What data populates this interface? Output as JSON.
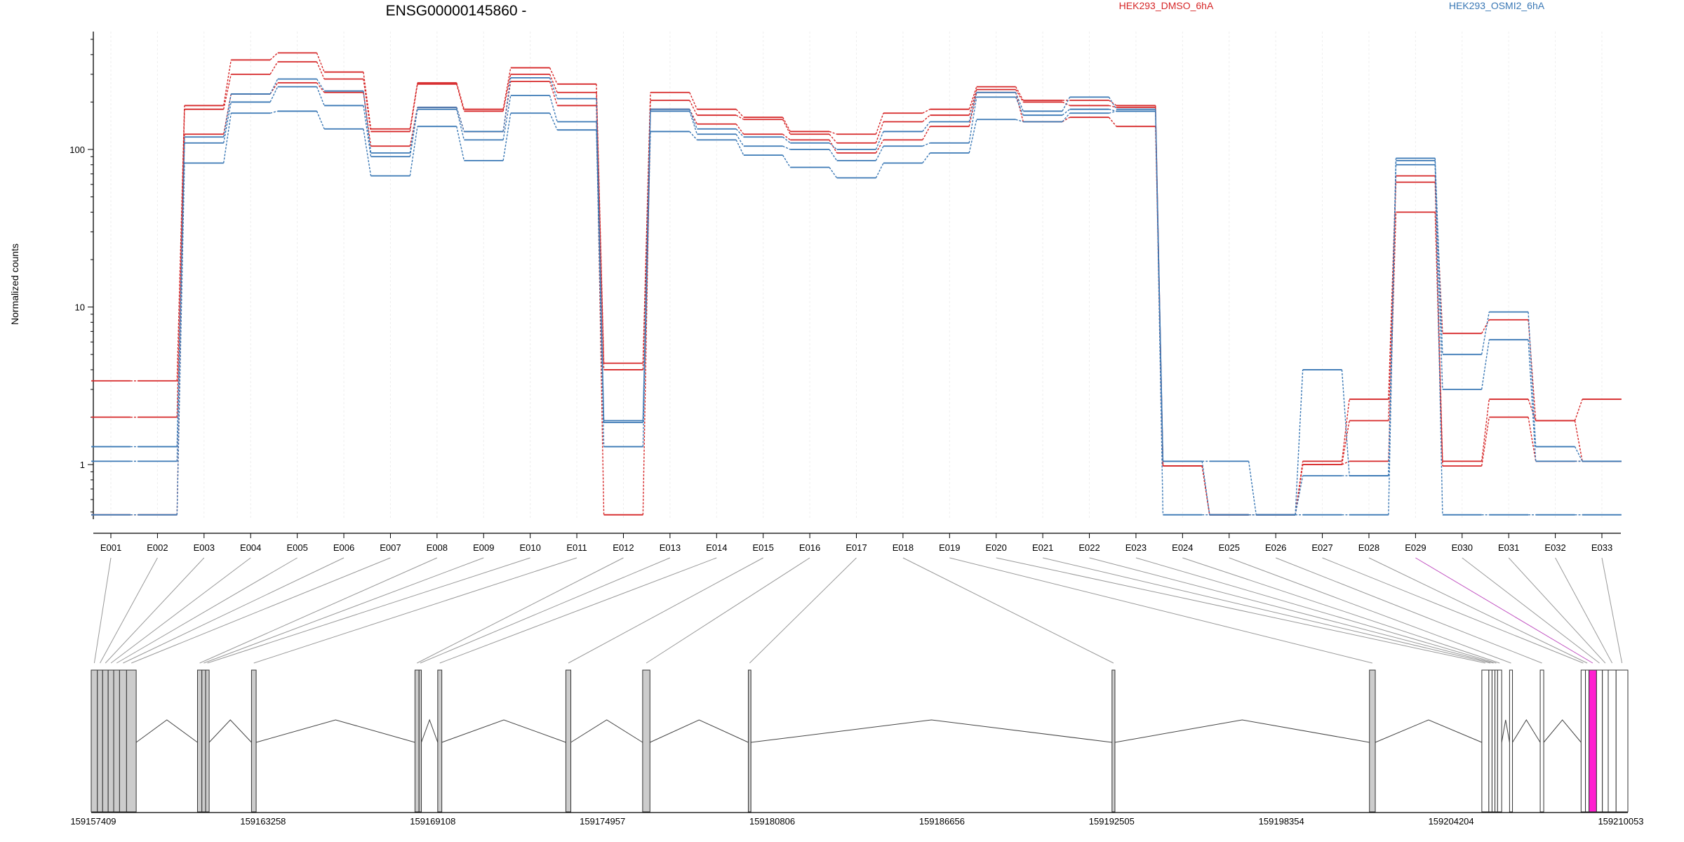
{
  "chart_data": {
    "type": "line",
    "title": "ENSG00000145860 -",
    "ylabel": "Normalized counts",
    "xlabel": "",
    "y_scale": "log",
    "ylim": [
      0.45,
      560
    ],
    "yticks": [
      1,
      10,
      100
    ],
    "ytick_labels": [
      "1",
      "10",
      "100"
    ],
    "legend_placement": "top",
    "grid": "light vertical lines at each exon",
    "categories": [
      "E001",
      "E002",
      "E003",
      "E004",
      "E005",
      "E006",
      "E007",
      "E008",
      "E009",
      "E010",
      "E011",
      "E012",
      "E013",
      "E014",
      "E015",
      "E016",
      "E017",
      "E018",
      "E019",
      "E020",
      "E021",
      "E022",
      "E023",
      "E024",
      "E025",
      "E026",
      "E027",
      "E028",
      "E029",
      "E030",
      "E031",
      "E032",
      "E033"
    ],
    "series": [
      {
        "name": "HEK293_DMSO_6hA",
        "color": "#d62728",
        "values": [
          3.4,
          3.4,
          190,
          370,
          410,
          310,
          135,
          265,
          180,
          330,
          260,
          4.4,
          230,
          180,
          160,
          130,
          125,
          170,
          180,
          250,
          205,
          205,
          190,
          0.98,
          0.48,
          0.48,
          1.05,
          2.6,
          68,
          6.8,
          8.3,
          1.9,
          2.6
        ]
      },
      {
        "name": "HEK293_DMSO_6hA",
        "color": "#d62728",
        "values": [
          2.0,
          2.0,
          180,
          300,
          360,
          280,
          130,
          260,
          175,
          300,
          230,
          4.0,
          205,
          165,
          155,
          125,
          110,
          150,
          165,
          240,
          200,
          190,
          185,
          0.98,
          0.48,
          0.48,
          1.0,
          1.9,
          62,
          1.05,
          2.6,
          1.9,
          1.05
        ]
      },
      {
        "name": "HEK293_DMSO_6hA",
        "color": "#d62728",
        "values": [
          0.48,
          0.48,
          125,
          225,
          265,
          230,
          105,
          185,
          130,
          270,
          190,
          0.48,
          180,
          145,
          125,
          115,
          95,
          115,
          140,
          230,
          150,
          160,
          140,
          0.98,
          0.48,
          0.48,
          1.0,
          1.05,
          40,
          0.98,
          2.0,
          1.05,
          1.05
        ]
      },
      {
        "name": "HEK293_OSMI2_6hA",
        "color": "#3a78b5",
        "values": [
          1.3,
          1.3,
          120,
          225,
          280,
          235,
          95,
          185,
          130,
          285,
          210,
          1.9,
          180,
          135,
          120,
          110,
          100,
          130,
          150,
          230,
          175,
          215,
          180,
          1.05,
          1.05,
          0.48,
          4.0,
          0.85,
          88,
          5.0,
          9.3,
          1.3,
          1.05
        ]
      },
      {
        "name": "HEK293_OSMI2_6hA",
        "color": "#3a78b5",
        "values": [
          1.05,
          1.05,
          110,
          200,
          250,
          190,
          90,
          180,
          115,
          220,
          150,
          1.85,
          175,
          125,
          105,
          100,
          85,
          105,
          110,
          215,
          165,
          180,
          175,
          1.05,
          0.48,
          0.48,
          0.85,
          0.85,
          80,
          3.0,
          6.2,
          1.05,
          1.05
        ]
      },
      {
        "name": "HEK293_OSMI2_6hA",
        "color": "#3a78b5",
        "values": [
          0.48,
          0.48,
          82,
          170,
          175,
          135,
          68,
          140,
          85,
          170,
          133,
          1.3,
          130,
          115,
          92,
          77,
          66,
          82,
          95,
          155,
          150,
          170,
          175,
          0.48,
          0.48,
          0.48,
          0.48,
          0.48,
          85,
          0.48,
          0.48,
          0.48,
          0.48
        ]
      }
    ],
    "gene_model": {
      "coordinate_labels": [
        "159157409",
        "159163258",
        "159169108",
        "159174957",
        "159180806",
        "159186656",
        "159192505",
        "159198354",
        "159204204",
        "159210053"
      ],
      "coordinate_range": [
        159157409,
        159210053
      ],
      "exons": [
        {
          "id": "E001",
          "start": 159157409,
          "end": 159157620,
          "fill": "#cccccc"
        },
        {
          "id": "E002",
          "start": 159157620,
          "end": 159157800,
          "fill": "#cccccc"
        },
        {
          "id": "E003",
          "start": 159157800,
          "end": 159157990,
          "fill": "#cccccc"
        },
        {
          "id": "E004",
          "start": 159157990,
          "end": 159158180,
          "fill": "#cccccc"
        },
        {
          "id": "E005",
          "start": 159158180,
          "end": 159158380,
          "fill": "#cccccc"
        },
        {
          "id": "E006",
          "start": 159158380,
          "end": 159158620,
          "fill": "#cccccc"
        },
        {
          "id": "E007",
          "start": 159158620,
          "end": 159158950,
          "fill": "#cccccc"
        },
        {
          "id": "E008",
          "start": 159161050,
          "end": 159161200,
          "fill": "#cccccc"
        },
        {
          "id": "E009",
          "start": 159161200,
          "end": 159161330,
          "fill": "#cccccc"
        },
        {
          "id": "E010",
          "start": 159161330,
          "end": 159161450,
          "fill": "#cccccc"
        },
        {
          "id": "E011",
          "start": 159162900,
          "end": 159163060,
          "fill": "#cccccc"
        },
        {
          "id": "E012",
          "start": 159168500,
          "end": 159168640,
          "fill": "#cccccc"
        },
        {
          "id": "E013",
          "start": 159168640,
          "end": 159168720,
          "fill": "#cccccc"
        },
        {
          "id": "E014",
          "start": 159169280,
          "end": 159169420,
          "fill": "#cccccc"
        },
        {
          "id": "E015",
          "start": 159173670,
          "end": 159173840,
          "fill": "#cccccc"
        },
        {
          "id": "E016",
          "start": 159176300,
          "end": 159176550,
          "fill": "#cccccc"
        },
        {
          "id": "E017",
          "start": 159179920,
          "end": 159180010,
          "fill": "#cccccc"
        },
        {
          "id": "E018",
          "start": 159192380,
          "end": 159192480,
          "fill": "#cccccc"
        },
        {
          "id": "E019",
          "start": 159201200,
          "end": 159201400,
          "fill": "#cccccc"
        },
        {
          "id": "E020",
          "start": 159205050,
          "end": 159205290,
          "fill": "#ffffff"
        },
        {
          "id": "E021",
          "start": 159205290,
          "end": 159205400,
          "fill": "#ffffff"
        },
        {
          "id": "E022",
          "start": 159205400,
          "end": 159205500,
          "fill": "#ffffff"
        },
        {
          "id": "E023",
          "start": 159205500,
          "end": 159205590,
          "fill": "#ffffff"
        },
        {
          "id": "E024",
          "start": 159205590,
          "end": 159205730,
          "fill": "#ffffff"
        },
        {
          "id": "E025",
          "start": 159206000,
          "end": 159206100,
          "fill": "#ffffff"
        },
        {
          "id": "E026",
          "start": 159207050,
          "end": 159207170,
          "fill": "#ffffff"
        },
        {
          "id": "E027",
          "start": 159208450,
          "end": 159208600,
          "fill": "#ffffff"
        },
        {
          "id": "E028",
          "start": 159208600,
          "end": 159208720,
          "fill": "#ffffff"
        },
        {
          "id": "E029",
          "start": 159208720,
          "end": 159208980,
          "fill": "#ff20d0"
        },
        {
          "id": "E030",
          "start": 159208980,
          "end": 159209180,
          "fill": "#ffffff"
        },
        {
          "id": "E031",
          "start": 159209180,
          "end": 159209380,
          "fill": "#ffffff"
        },
        {
          "id": "E032",
          "start": 159209380,
          "end": 159209650,
          "fill": "#ffffff"
        },
        {
          "id": "E033",
          "start": 159209650,
          "end": 159210053,
          "fill": "#ffffff"
        }
      ]
    }
  }
}
